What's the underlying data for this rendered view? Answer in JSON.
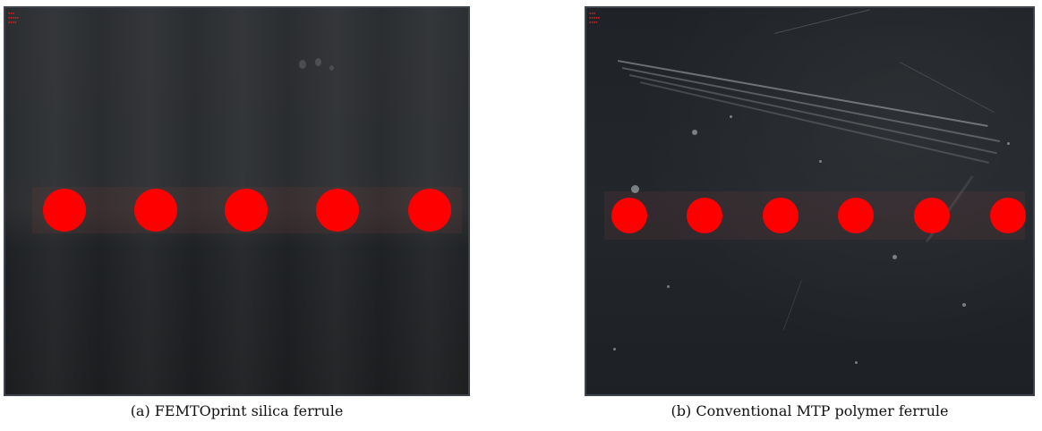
{
  "figure": {
    "panels": [
      {
        "id": "a",
        "caption": "(a) FEMTOprint silica ferrule",
        "overlay_text": [
          "",
          "",
          ""
        ],
        "cores": 5,
        "core_color": "#ff0000"
      },
      {
        "id": "b",
        "caption": "(b) Conventional MTP polymer ferrule",
        "overlay_text": [
          "",
          "",
          ""
        ],
        "cores": 6,
        "core_color": "#ff0000"
      }
    ]
  }
}
